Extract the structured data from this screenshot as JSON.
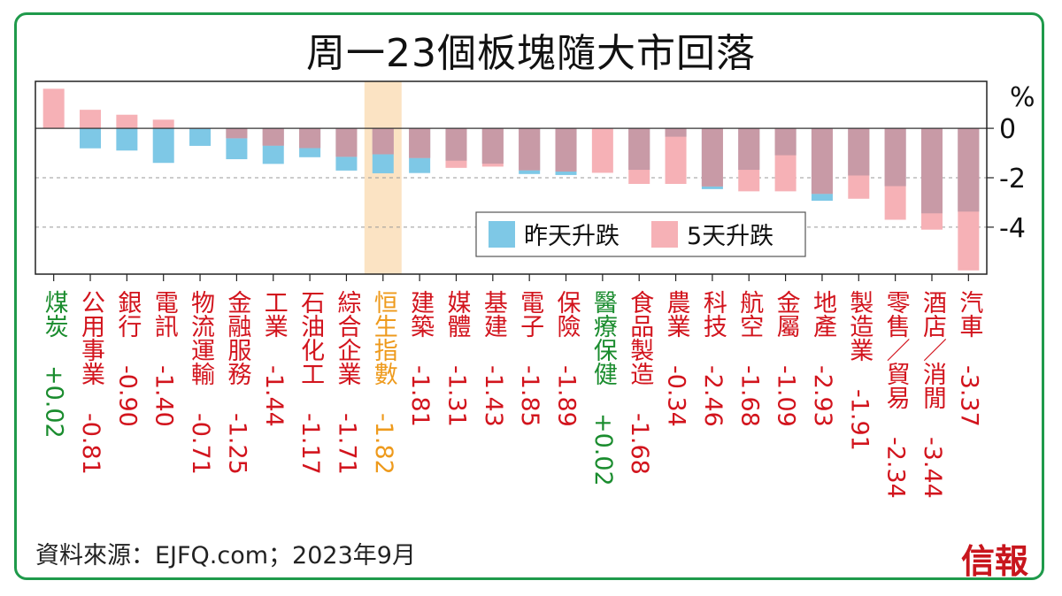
{
  "title": "周一23個板塊隨大市回落",
  "source": "資料來源：EJFQ.com；2023年9月",
  "logo_text": "信報",
  "colors": {
    "daily": "#7ec8e6",
    "five_day": "#f6b1b6",
    "overlap": "#c89aa6",
    "highlight": "#fbe3c3",
    "positive_label": "#1a8c2e",
    "negative_label": "#d2141d",
    "index_label": "#ee9a1c",
    "frame": "#1f9a4b"
  },
  "chart_data": {
    "type": "bar",
    "ylabel": "%",
    "ylim": [
      -5.9,
      1.9
    ],
    "yticks": [
      0,
      -2,
      -4
    ],
    "ytick_labels": [
      "0",
      "-2",
      "-4"
    ],
    "gridlines": [
      -2,
      -4
    ],
    "highlight_category": "恒生指數",
    "legend_position": "inside-lower-center",
    "categories": [
      "煤炭",
      "公用事業",
      "銀行",
      "電訊",
      "物流運輸",
      "金融服務",
      "工業",
      "石油化工",
      "綜合企業",
      "恒生指數",
      "建築",
      "媒體",
      "基建",
      "電子",
      "保險",
      "醫療保健",
      "食品製造",
      "農業",
      "科技",
      "航空",
      "金屬",
      "地產",
      "製造業",
      "零售／貿易",
      "酒店／消閒",
      "汽車"
    ],
    "category_labels": [
      "煤炭 +0.02",
      "公用事業 -0.81",
      "銀行 -0.90",
      "電訊 -1.40",
      "物流運輸 -0.71",
      "金融服務 -1.25",
      "工業 -1.44",
      "石油化工 -1.17",
      "綜合企業 -1.71",
      "恒生指數 -1.82",
      "建築 -1.81",
      "媒體 -1.31",
      "基建 -1.43",
      "電子 -1.85",
      "保險 -1.89",
      "醫療保健 +0.02",
      "食品製造 -1.68",
      "農業 -0.34",
      "科技 -2.46",
      "航空 -1.68",
      "金屬 -1.09",
      "地產 -2.93",
      "製造業 -1.91",
      "零售／貿易 -2.34",
      "酒店／消閒 -3.44",
      "汽車 -3.37"
    ],
    "series": [
      {
        "name": "昨天升跌",
        "values": [
          0.02,
          -0.81,
          -0.9,
          -1.4,
          -0.71,
          -1.25,
          -1.44,
          -1.17,
          -1.71,
          -1.82,
          -1.81,
          -1.31,
          -1.43,
          -1.85,
          -1.89,
          0.02,
          -1.68,
          -0.34,
          -2.46,
          -1.68,
          -1.09,
          -2.93,
          -1.91,
          -2.34,
          -3.44,
          -3.37
        ]
      },
      {
        "name": "5天升跌",
        "values": [
          1.6,
          0.75,
          0.55,
          0.35,
          0,
          -0.4,
          -0.7,
          -0.8,
          -1.15,
          -1.05,
          -1.2,
          -1.6,
          -1.55,
          -1.7,
          -1.75,
          -1.8,
          -2.25,
          -2.25,
          -2.35,
          -2.55,
          -2.55,
          -2.65,
          -2.85,
          -3.7,
          -4.1,
          -5.75
        ]
      }
    ]
  }
}
